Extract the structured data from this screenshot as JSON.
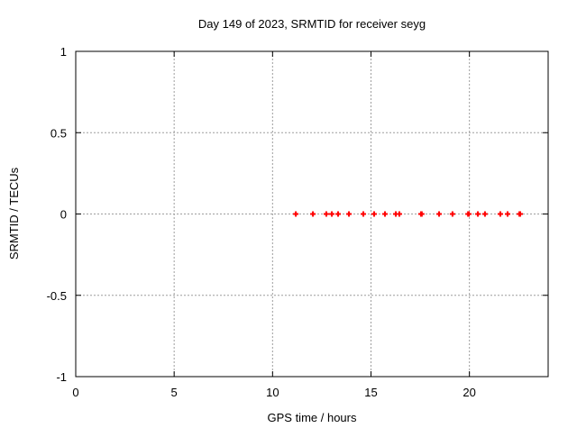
{
  "window": {
    "background_color": "#ffffff"
  },
  "chart_data": {
    "type": "scatter",
    "title": "Day 149 of 2023, SRMTID for receiver seyg",
    "xlabel": "GPS time / hours",
    "ylabel": "SRMTID / TECUs",
    "xlim": [
      0,
      24
    ],
    "ylim": [
      -1,
      1
    ],
    "x_ticks": [
      {
        "v": 0,
        "label": "0"
      },
      {
        "v": 5,
        "label": "5"
      },
      {
        "v": 10,
        "label": "10"
      },
      {
        "v": 15,
        "label": "15"
      },
      {
        "v": 20,
        "label": "20"
      }
    ],
    "y_ticks": [
      {
        "v": -1,
        "label": "-1"
      },
      {
        "v": -0.5,
        "label": "-0.5"
      },
      {
        "v": 0,
        "label": "0"
      },
      {
        "v": 0.5,
        "label": "0.5"
      },
      {
        "v": 1,
        "label": "1"
      }
    ],
    "grid": true,
    "grid_color": "#9e9e9e",
    "border_color": "#000000",
    "legend_position": "none",
    "marker": {
      "shape": "plus",
      "color": "#ff0000",
      "size": 7,
      "stroke_width": 2
    },
    "series": [
      {
        "name": "SRMTID",
        "points": [
          [
            11.18,
            0
          ],
          [
            12.05,
            0
          ],
          [
            12.73,
            0
          ],
          [
            13.01,
            0
          ],
          [
            13.33,
            0
          ],
          [
            13.88,
            0
          ],
          [
            14.61,
            0
          ],
          [
            15.16,
            0
          ],
          [
            15.71,
            0
          ],
          [
            16.26,
            0
          ],
          [
            16.44,
            0
          ],
          [
            17.54,
            0
          ],
          [
            17.58,
            0
          ],
          [
            18.46,
            0
          ],
          [
            19.14,
            0
          ],
          [
            19.93,
            0
          ],
          [
            19.97,
            0
          ],
          [
            20.43,
            0
          ],
          [
            20.79,
            0
          ],
          [
            21.57,
            0
          ],
          [
            21.94,
            0
          ],
          [
            22.54,
            0
          ],
          [
            22.58,
            0
          ]
        ]
      }
    ]
  }
}
